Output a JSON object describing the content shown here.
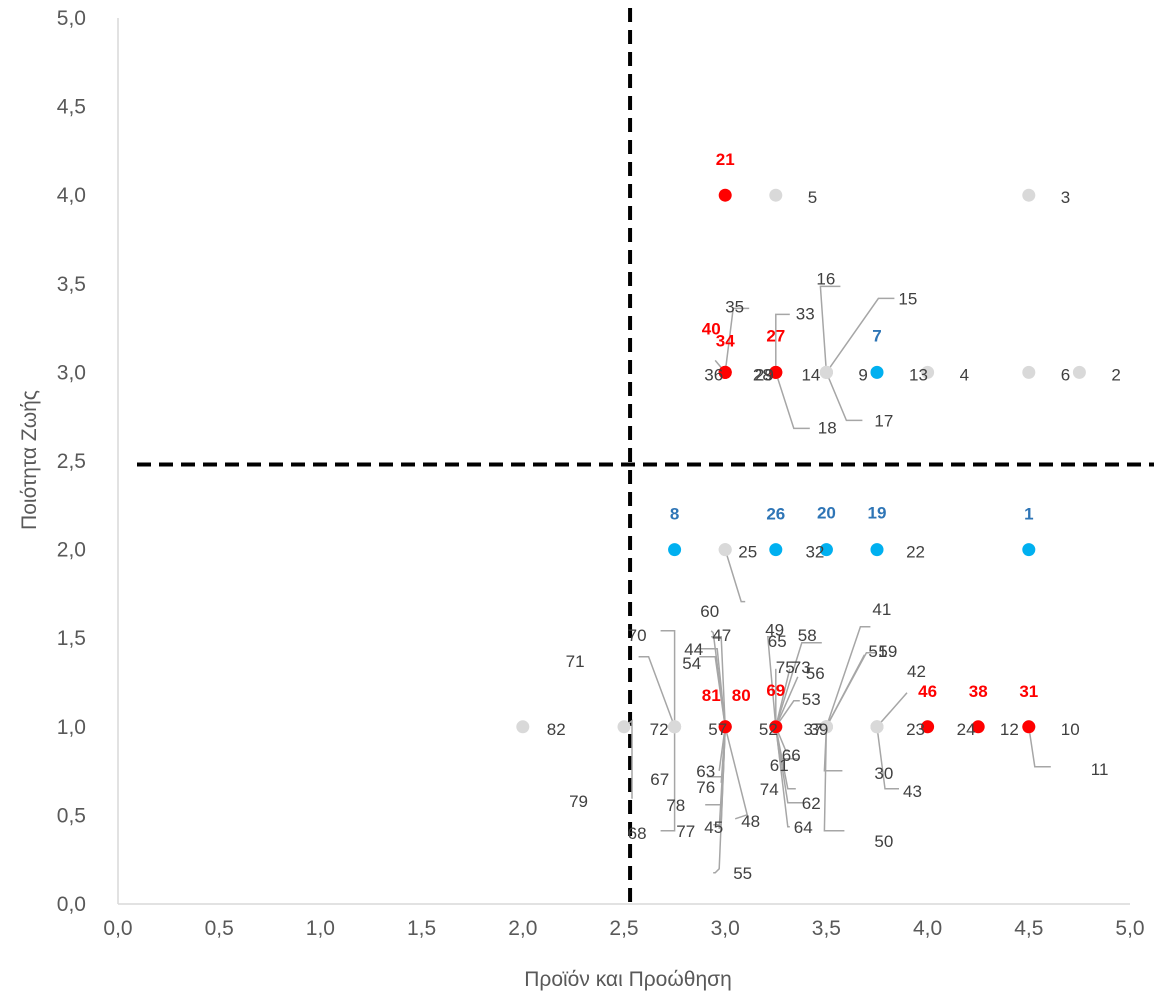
{
  "chart_data": {
    "type": "scatter",
    "title": "",
    "xlabel": "Προϊόν και Προώθηση",
    "ylabel": "Ποιότητα Ζωής",
    "xlim": [
      0,
      5
    ],
    "ylim": [
      0,
      5
    ],
    "x_ticks": [
      "0,0",
      "0,5",
      "1,0",
      "1,5",
      "2,0",
      "2,5",
      "3,0",
      "3,5",
      "4,0",
      "4,5",
      "5,0"
    ],
    "y_ticks": [
      "0,0",
      "0,5",
      "1,0",
      "1,5",
      "2,0",
      "2,5",
      "3,0",
      "3,5",
      "4,0",
      "4,5",
      "5,0"
    ],
    "grid": false,
    "reference_lines": {
      "x": 2.53,
      "y": 2.48
    },
    "colors": {
      "gray": "#d9d9d9",
      "red": "#ff0000",
      "blue": "#00b0f0",
      "blue_label": "#2e75b6",
      "axis": "#d9d9d9",
      "leader": "#a6a6a6"
    },
    "points": [
      {
        "label": "1",
        "x": 4.5,
        "y": 2.0,
        "color": "blue"
      },
      {
        "label": "2",
        "x": 4.75,
        "y": 3.0,
        "color": "gray"
      },
      {
        "label": "3",
        "x": 4.5,
        "y": 4.0,
        "color": "gray"
      },
      {
        "label": "4",
        "x": 4.0,
        "y": 3.0,
        "color": "gray"
      },
      {
        "label": "5",
        "x": 3.25,
        "y": 4.0,
        "color": "gray"
      },
      {
        "label": "6",
        "x": 4.5,
        "y": 3.0,
        "color": "gray"
      },
      {
        "label": "7",
        "x": 3.75,
        "y": 3.0,
        "color": "blue"
      },
      {
        "label": "8",
        "x": 2.75,
        "y": 2.0,
        "color": "blue"
      },
      {
        "label": "9",
        "x": 3.5,
        "y": 3.0,
        "color": "gray"
      },
      {
        "label": "10",
        "x": 4.5,
        "y": 1.0,
        "color": "gray"
      },
      {
        "label": "11",
        "x": 4.5,
        "y": 1.0,
        "color": "gray"
      },
      {
        "label": "12",
        "x": 4.5,
        "y": 1.0,
        "color": "gray"
      },
      {
        "label": "13",
        "x": 3.75,
        "y": 3.0,
        "color": "gray"
      },
      {
        "label": "14",
        "x": 3.5,
        "y": 3.0,
        "color": "gray"
      },
      {
        "label": "15",
        "x": 3.5,
        "y": 3.0,
        "color": "gray"
      },
      {
        "label": "16",
        "x": 3.5,
        "y": 3.0,
        "color": "gray"
      },
      {
        "label": "17",
        "x": 3.5,
        "y": 3.0,
        "color": "gray"
      },
      {
        "label": "18",
        "x": 3.25,
        "y": 3.0,
        "color": "gray"
      },
      {
        "label": "19",
        "x": 3.75,
        "y": 2.0,
        "color": "blue"
      },
      {
        "label": "20",
        "x": 3.5,
        "y": 2.0,
        "color": "blue"
      },
      {
        "label": "21",
        "x": 3.0,
        "y": 4.0,
        "color": "red"
      },
      {
        "label": "22",
        "x": 3.75,
        "y": 2.0,
        "color": "gray"
      },
      {
        "label": "23",
        "x": 3.75,
        "y": 1.0,
        "color": "gray"
      },
      {
        "label": "24",
        "x": 4.0,
        "y": 1.0,
        "color": "gray"
      },
      {
        "label": "25",
        "x": 3.0,
        "y": 2.0,
        "color": "gray"
      },
      {
        "label": "26",
        "x": 3.25,
        "y": 2.0,
        "color": "blue"
      },
      {
        "label": "27",
        "x": 3.25,
        "y": 3.0,
        "color": "red"
      },
      {
        "label": "28",
        "x": 3.25,
        "y": 3.0,
        "color": "gray"
      },
      {
        "label": "29",
        "x": 3.25,
        "y": 3.0,
        "color": "gray"
      },
      {
        "label": "30",
        "x": 3.5,
        "y": 1.0,
        "color": "gray"
      },
      {
        "label": "31",
        "x": 4.5,
        "y": 1.0,
        "color": "red"
      },
      {
        "label": "32",
        "x": 3.5,
        "y": 2.0,
        "color": "gray"
      },
      {
        "label": "33",
        "x": 3.25,
        "y": 3.0,
        "color": "red"
      },
      {
        "label": "34",
        "x": 3.0,
        "y": 3.0,
        "color": "red"
      },
      {
        "label": "35",
        "x": 3.0,
        "y": 3.0,
        "color": "red"
      },
      {
        "label": "36",
        "x": 3.0,
        "y": 3.0,
        "color": "gray"
      },
      {
        "label": "37",
        "x": 3.5,
        "y": 1.0,
        "color": "gray"
      },
      {
        "label": "38",
        "x": 4.25,
        "y": 1.0,
        "color": "red"
      },
      {
        "label": "39",
        "x": 3.5,
        "y": 1.0,
        "color": "gray"
      },
      {
        "label": "40",
        "x": 3.0,
        "y": 3.0,
        "color": "red"
      },
      {
        "label": "41",
        "x": 3.5,
        "y": 1.0,
        "color": "gray"
      },
      {
        "label": "42",
        "x": 3.75,
        "y": 1.0,
        "color": "gray"
      },
      {
        "label": "43",
        "x": 3.75,
        "y": 1.0,
        "color": "gray"
      },
      {
        "label": "44",
        "x": 3.0,
        "y": 1.0,
        "color": "gray"
      },
      {
        "label": "45",
        "x": 3.0,
        "y": 1.0,
        "color": "gray"
      },
      {
        "label": "46",
        "x": 4.0,
        "y": 1.0,
        "color": "red"
      },
      {
        "label": "47",
        "x": 3.0,
        "y": 1.0,
        "color": "gray"
      },
      {
        "label": "48",
        "x": 3.0,
        "y": 1.0,
        "color": "gray"
      },
      {
        "label": "49",
        "x": 3.0,
        "y": 2.0,
        "color": "gray"
      },
      {
        "label": "50",
        "x": 3.5,
        "y": 1.0,
        "color": "gray"
      },
      {
        "label": "51",
        "x": 3.5,
        "y": 1.0,
        "color": "gray"
      },
      {
        "label": "52",
        "x": 3.25,
        "y": 1.0,
        "color": "gray"
      },
      {
        "label": "53",
        "x": 3.25,
        "y": 1.0,
        "color": "gray"
      },
      {
        "label": "54",
        "x": 3.0,
        "y": 1.0,
        "color": "gray"
      },
      {
        "label": "55",
        "x": 3.0,
        "y": 1.0,
        "color": "gray"
      },
      {
        "label": "56",
        "x": 3.25,
        "y": 1.0,
        "color": "gray"
      },
      {
        "label": "57",
        "x": 3.0,
        "y": 1.0,
        "color": "gray"
      },
      {
        "label": "58",
        "x": 3.25,
        "y": 1.0,
        "color": "gray"
      },
      {
        "label": "59",
        "x": 3.5,
        "y": 1.0,
        "color": "gray"
      },
      {
        "label": "60",
        "x": 3.0,
        "y": 1.0,
        "color": "gray"
      },
      {
        "label": "61",
        "x": 3.25,
        "y": 1.0,
        "color": "gray"
      },
      {
        "label": "62",
        "x": 3.25,
        "y": 1.0,
        "color": "gray"
      },
      {
        "label": "63",
        "x": 3.0,
        "y": 1.0,
        "color": "gray"
      },
      {
        "label": "64",
        "x": 3.25,
        "y": 1.0,
        "color": "gray"
      },
      {
        "label": "65",
        "x": 3.25,
        "y": 1.0,
        "color": "gray"
      },
      {
        "label": "66",
        "x": 3.25,
        "y": 1.0,
        "color": "gray"
      },
      {
        "label": "67",
        "x": 3.0,
        "y": 1.0,
        "color": "gray"
      },
      {
        "label": "68",
        "x": 2.75,
        "y": 1.0,
        "color": "gray"
      },
      {
        "label": "69",
        "x": 3.25,
        "y": 1.0,
        "color": "red"
      },
      {
        "label": "70",
        "x": 2.75,
        "y": 1.0,
        "color": "gray"
      },
      {
        "label": "71",
        "x": 2.75,
        "y": 1.0,
        "color": "gray"
      },
      {
        "label": "72",
        "x": 2.75,
        "y": 1.0,
        "color": "gray"
      },
      {
        "label": "73",
        "x": 3.25,
        "y": 1.0,
        "color": "gray"
      },
      {
        "label": "74",
        "x": 3.25,
        "y": 1.0,
        "color": "gray"
      },
      {
        "label": "75",
        "x": 3.25,
        "y": 1.0,
        "color": "gray"
      },
      {
        "label": "76",
        "x": 3.0,
        "y": 1.0,
        "color": "gray"
      },
      {
        "label": "77",
        "x": 3.0,
        "y": 1.0,
        "color": "gray"
      },
      {
        "label": "78",
        "x": 3.0,
        "y": 1.0,
        "color": "gray"
      },
      {
        "label": "79",
        "x": 2.5,
        "y": 1.0,
        "color": "gray"
      },
      {
        "label": "80",
        "x": 3.0,
        "y": 1.0,
        "color": "red"
      },
      {
        "label": "81",
        "x": 3.0,
        "y": 1.0,
        "color": "red"
      },
      {
        "label": "82",
        "x": 2.0,
        "y": 1.0,
        "color": "gray"
      }
    ]
  }
}
